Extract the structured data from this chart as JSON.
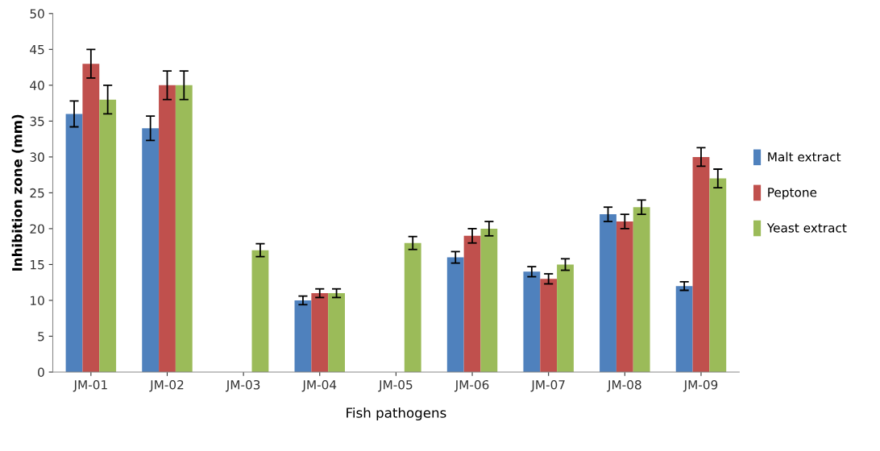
{
  "chart_data": {
    "type": "bar",
    "xlabel": "Fish pathogens",
    "ylabel": "Inhibition zone (mm)",
    "categories": [
      "JM-01",
      "JM-02",
      "JM-03",
      "JM-04",
      "JM-05",
      "JM-06",
      "JM-07",
      "JM-08",
      "JM-09"
    ],
    "series": [
      {
        "name": "Malt extract",
        "color": "#4f81bd",
        "values": [
          36,
          34,
          null,
          10,
          null,
          16,
          14,
          22,
          12
        ],
        "errors": [
          1.8,
          1.7,
          null,
          0.6,
          null,
          0.8,
          0.7,
          1,
          0.6
        ]
      },
      {
        "name": "Peptone",
        "color": "#c0504d",
        "values": [
          43,
          40,
          null,
          11,
          null,
          19,
          13,
          21,
          30
        ],
        "errors": [
          2,
          2,
          null,
          0.6,
          null,
          1,
          0.7,
          1,
          1.3
        ]
      },
      {
        "name": "Yeast extract",
        "color": "#9bbb59",
        "values": [
          38,
          40,
          17,
          11,
          18,
          20,
          15,
          23,
          27
        ],
        "errors": [
          2,
          2,
          0.9,
          0.6,
          0.9,
          1,
          0.8,
          1,
          1.3
        ]
      }
    ],
    "ylim": [
      0,
      50
    ],
    "yticks": [
      0,
      5,
      10,
      15,
      20,
      25,
      30,
      35,
      40,
      45,
      50
    ],
    "grid": false,
    "legend": "right"
  }
}
